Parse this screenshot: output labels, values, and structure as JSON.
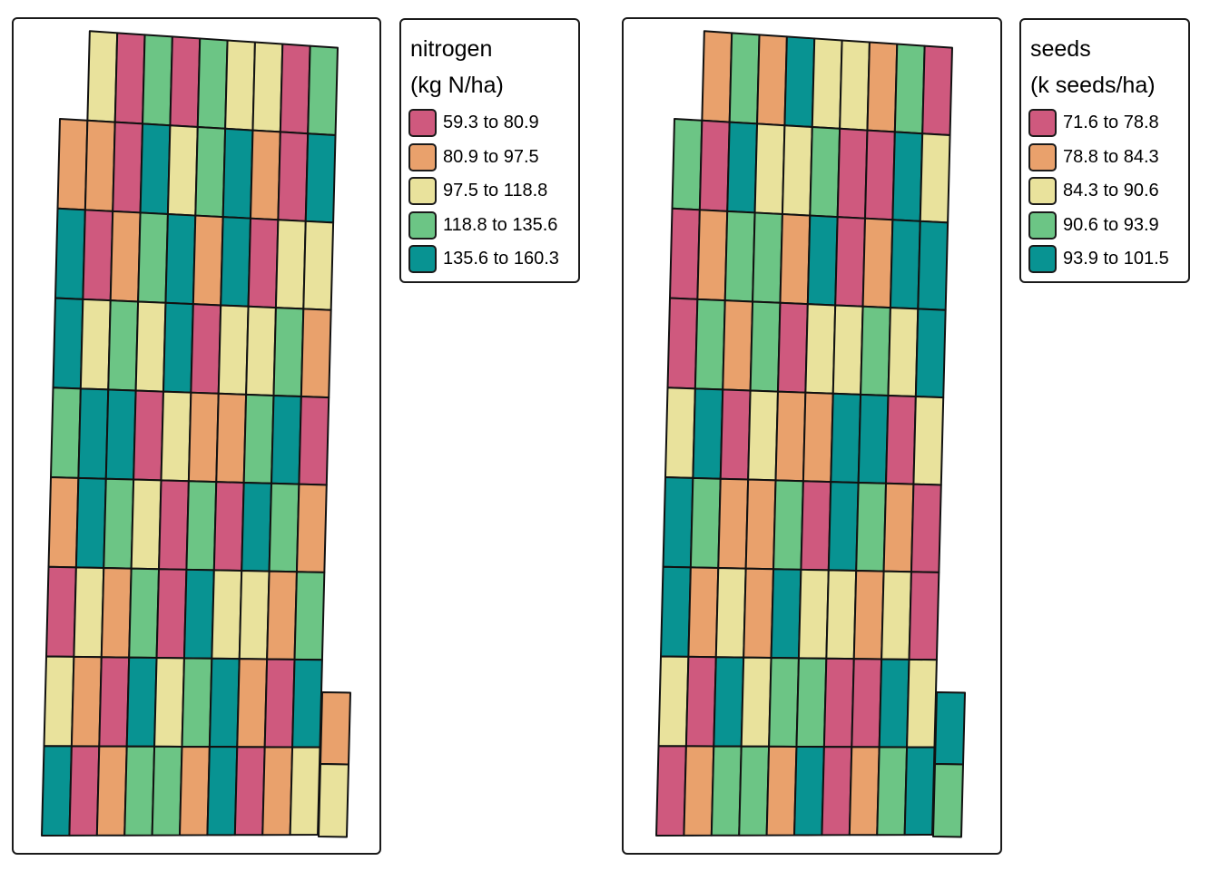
{
  "colors": {
    "c1": "#CF597E",
    "c2": "#E9A16C",
    "c3": "#E9E29C",
    "c4": "#6CC585",
    "c5": "#089392"
  },
  "maps": [
    {
      "id": "nitrogen",
      "legend": {
        "title_line1": "nitrogen",
        "title_line2": "(kg N/ha)",
        "items": [
          {
            "label": "59.3 to 80.9",
            "class": "c1"
          },
          {
            "label": "80.9 to 97.5",
            "class": "c2"
          },
          {
            "label": "97.5 to 118.8",
            "class": "c3"
          },
          {
            "label": "118.8 to 135.6",
            "class": "c4"
          },
          {
            "label": "135.6 to 160.3",
            "class": "c5"
          }
        ]
      },
      "grid": [
        [
          null,
          "c3",
          "c1",
          "c4",
          "c1",
          "c4",
          "c3",
          "c3",
          "c1",
          "c4"
        ],
        [
          "c2",
          "c2",
          "c1",
          "c5",
          "c3",
          "c4",
          "c5",
          "c2",
          "c1",
          "c5"
        ],
        [
          "c5",
          "c1",
          "c2",
          "c4",
          "c5",
          "c2",
          "c5",
          "c1",
          "c3",
          "c3"
        ],
        [
          "c5",
          "c3",
          "c4",
          "c3",
          "c5",
          "c1",
          "c3",
          "c3",
          "c4",
          "c2"
        ],
        [
          "c4",
          "c5",
          "c5",
          "c1",
          "c3",
          "c2",
          "c2",
          "c4",
          "c5",
          "c1"
        ],
        [
          "c2",
          "c5",
          "c4",
          "c3",
          "c1",
          "c4",
          "c1",
          "c5",
          "c4",
          "c2"
        ],
        [
          "c1",
          "c3",
          "c2",
          "c4",
          "c1",
          "c5",
          "c3",
          "c3",
          "c2",
          "c4"
        ],
        [
          "c3",
          "c2",
          "c1",
          "c5",
          "c3",
          "c4",
          "c5",
          "c2",
          "c1",
          "c5"
        ],
        [
          "c5",
          "c1",
          "c2",
          "c4",
          "c4",
          "c2",
          "c5",
          "c1",
          "c2",
          "c3"
        ]
      ],
      "extra_column": [
        "c2",
        "c3"
      ]
    },
    {
      "id": "seeds",
      "legend": {
        "title_line1": "seeds",
        "title_line2": "(k seeds/ha)",
        "items": [
          {
            "label": "71.6 to 78.8",
            "class": "c1"
          },
          {
            "label": "78.8 to 84.3",
            "class": "c2"
          },
          {
            "label": "84.3 to 90.6",
            "class": "c3"
          },
          {
            "label": "90.6 to 93.9",
            "class": "c4"
          },
          {
            "label": "93.9 to 101.5",
            "class": "c5"
          }
        ]
      },
      "grid": [
        [
          null,
          "c2",
          "c4",
          "c2",
          "c5",
          "c3",
          "c3",
          "c2",
          "c4",
          "c1"
        ],
        [
          "c4",
          "c1",
          "c5",
          "c3",
          "c3",
          "c4",
          "c1",
          "c1",
          "c5",
          "c3"
        ],
        [
          "c1",
          "c2",
          "c4",
          "c4",
          "c2",
          "c5",
          "c1",
          "c2",
          "c5",
          "c5"
        ],
        [
          "c1",
          "c4",
          "c2",
          "c4",
          "c1",
          "c3",
          "c3",
          "c4",
          "c3",
          "c5"
        ],
        [
          "c3",
          "c5",
          "c1",
          "c3",
          "c2",
          "c2",
          "c5",
          "c5",
          "c1",
          "c3"
        ],
        [
          "c5",
          "c4",
          "c2",
          "c2",
          "c4",
          "c1",
          "c5",
          "c4",
          "c2",
          "c1"
        ],
        [
          "c5",
          "c2",
          "c3",
          "c2",
          "c5",
          "c3",
          "c3",
          "c2",
          "c3",
          "c1"
        ],
        [
          "c3",
          "c1",
          "c5",
          "c3",
          "c4",
          "c4",
          "c1",
          "c1",
          "c5",
          "c3"
        ],
        [
          "c1",
          "c2",
          "c4",
          "c4",
          "c2",
          "c5",
          "c1",
          "c2",
          "c4",
          "c5"
        ]
      ],
      "extra_column": [
        "c5",
        "c4"
      ]
    }
  ]
}
